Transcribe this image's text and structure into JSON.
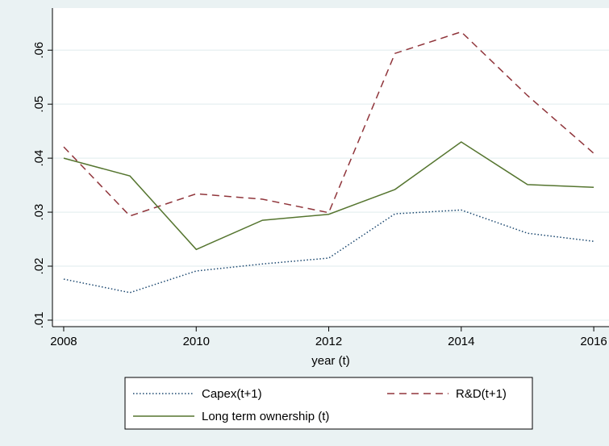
{
  "chart_data": {
    "type": "line",
    "x_label": "year (t)",
    "x": [
      2008,
      2009,
      2010,
      2011,
      2012,
      2013,
      2014,
      2015,
      2016
    ],
    "xlim": [
      2007.83,
      2016.23
    ],
    "xticks": [
      2008,
      2010,
      2012,
      2014,
      2016
    ],
    "ylim": [
      0.0088,
      0.0678
    ],
    "yticks": [
      {
        "value": 0.01,
        "label": ".01"
      },
      {
        "value": 0.02,
        "label": ".02"
      },
      {
        "value": 0.03,
        "label": ".03"
      },
      {
        "value": 0.04,
        "label": ".04"
      },
      {
        "value": 0.05,
        "label": ".05"
      },
      {
        "value": 0.06,
        "label": ".06"
      }
    ],
    "grid": true,
    "legend": "bottom",
    "series": [
      {
        "name": "Capex(t+1)",
        "color": "#1a476f",
        "dash": "1.5 2.5",
        "values": [
          0.0176,
          0.0151,
          0.0191,
          0.0204,
          0.0215,
          0.0297,
          0.0304,
          0.0261,
          0.0246
        ]
      },
      {
        "name": "R&D(t+1)",
        "color": "#90353b",
        "dash": "9 6",
        "values": [
          0.0421,
          0.0293,
          0.0334,
          0.0324,
          0.0299,
          0.0594,
          0.0634,
          0.0516,
          0.0409
        ]
      },
      {
        "name": "Long term ownership (t)",
        "color": "#55752f",
        "dash": "none",
        "values": [
          0.04,
          0.0367,
          0.0231,
          0.0285,
          0.0296,
          0.0342,
          0.043,
          0.0351,
          0.0346
        ]
      }
    ]
  }
}
